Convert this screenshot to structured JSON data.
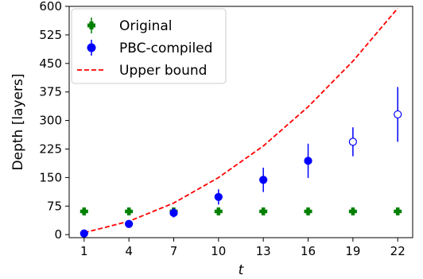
{
  "chart_data": {
    "type": "scatter",
    "xlabel": "t",
    "ylabel": "Depth [layers]",
    "xlim": [
      0,
      23
    ],
    "ylim": [
      -8,
      600
    ],
    "xticks": [
      1,
      4,
      7,
      10,
      13,
      16,
      19,
      22
    ],
    "yticks": [
      0,
      75,
      150,
      225,
      300,
      375,
      450,
      525,
      600
    ],
    "legend_position": "top-left",
    "series": [
      {
        "name": "Original",
        "marker": "plus",
        "color": "#008000",
        "x": [
          1,
          4,
          7,
          10,
          13,
          16,
          19,
          22
        ],
        "y": [
          61,
          61,
          61,
          61,
          61,
          61,
          61,
          61
        ],
        "err": [
          4,
          4,
          4,
          4,
          4,
          4,
          4,
          4
        ]
      },
      {
        "name": "PBC-compiled",
        "marker": "circle",
        "color": "#0000ff",
        "x": [
          1,
          4,
          7,
          10,
          13,
          16,
          19,
          22
        ],
        "y": [
          3,
          28,
          57,
          99,
          144,
          194,
          244,
          316
        ],
        "err": [
          2,
          5,
          12,
          20,
          32,
          45,
          38,
          72
        ],
        "hollow": [
          false,
          false,
          false,
          false,
          false,
          false,
          true,
          true
        ]
      },
      {
        "name": "Upper bound",
        "marker": "dashed-line",
        "color": "#ff0000",
        "x": [
          1,
          4,
          7,
          10,
          13,
          16,
          19,
          22
        ],
        "y": [
          5,
          35,
          83,
          150,
          233,
          336,
          456,
          595
        ]
      }
    ]
  }
}
